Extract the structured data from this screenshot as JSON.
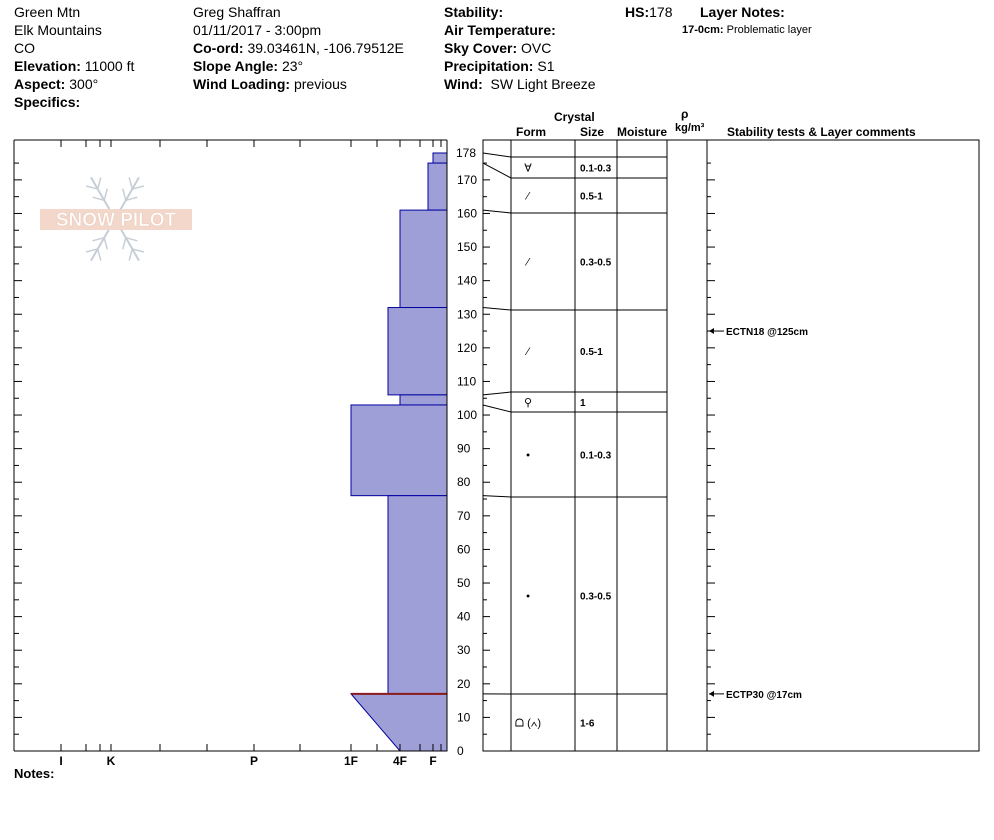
{
  "site": {
    "name": "Green Mtn",
    "range": "Elk Mountains",
    "state": "CO",
    "elevation_label": "Elevation:",
    "elevation": "11000 ft",
    "aspect_label": "Aspect:",
    "aspect": "300°",
    "specifics_label": "Specifics:"
  },
  "observer": {
    "name": "Greg Shaffran",
    "datetime": "01/11/2017 - 3:00pm",
    "coord_label": "Co-ord:",
    "coord": "39.03461N, -106.79512E",
    "slope_label": "Slope Angle:",
    "slope": "23°",
    "wind_loading_label": "Wind Loading:",
    "wind_loading": "previous"
  },
  "conditions": {
    "stability_label": "Stability:",
    "stability": "",
    "air_temp_label": "Air Temperature:",
    "air_temp": "",
    "sky_label": "Sky Cover:",
    "sky": "OVC",
    "precip_label": "Precipitation:",
    "precip": "S1",
    "wind_label": "Wind:",
    "wind": "SW Light Breeze"
  },
  "hs": {
    "label": "HS:",
    "value": "178"
  },
  "layer_notes": {
    "label": "Layer Notes:",
    "notes": [
      {
        "range": "17-0cm:",
        "text": "Problematic layer"
      }
    ]
  },
  "logo_text": "SNOW PILOT",
  "table_headers": {
    "crystal": "Crystal",
    "form": "Form",
    "size": "Size",
    "moisture": "Moisture",
    "rho": "ρ",
    "density_unit": "kg/m³",
    "stability_comments": "Stability tests & Layer comments"
  },
  "notes_label": "Notes:",
  "colors": {
    "layer_fill": "#9f9fd7",
    "layer_stroke": "#0000a0",
    "weak_layer": "#8b1a1a"
  },
  "chart_data": {
    "type": "snow_profile",
    "y_unit": "cm",
    "ylim": [
      0,
      178
    ],
    "y_ticks": [
      0,
      10,
      20,
      30,
      40,
      50,
      60,
      70,
      80,
      90,
      100,
      110,
      120,
      130,
      140,
      150,
      160,
      170
    ],
    "top_label": "178",
    "hardness_scale": [
      "I",
      "K",
      "P",
      "1F",
      "4F",
      "F"
    ],
    "layers": [
      {
        "top": 178,
        "bottom": 175,
        "hardness": "F",
        "form": "∀",
        "size": "0.1-0.3"
      },
      {
        "top": 175,
        "bottom": 161,
        "hardness": "F+",
        "form": "⁄",
        "size": "0.5-1"
      },
      {
        "top": 161,
        "bottom": 132,
        "hardness": "4F",
        "form": "⁄",
        "size": "0.3-0.5"
      },
      {
        "top": 132,
        "bottom": 106,
        "hardness": "4F-",
        "form": "⁄",
        "size": "0.5-1"
      },
      {
        "top": 106,
        "bottom": 103,
        "hardness": "4F",
        "form": "⚲",
        "size": "1"
      },
      {
        "top": 103,
        "bottom": 76,
        "hardness": "1F",
        "form": "•",
        "size": "0.1-0.3"
      },
      {
        "top": 76,
        "bottom": 17,
        "hardness": "4F-",
        "form": "•",
        "size": "0.3-0.5"
      },
      {
        "top": 17,
        "bottom": 0,
        "hardness": "1F to 4F",
        "form": "ᗝ (∧)",
        "size": "1-6"
      }
    ],
    "stability_tests": [
      {
        "depth": 125,
        "text": "ECTN18 @125cm"
      },
      {
        "depth": 17,
        "text": "ECTP30 @17cm"
      }
    ]
  }
}
